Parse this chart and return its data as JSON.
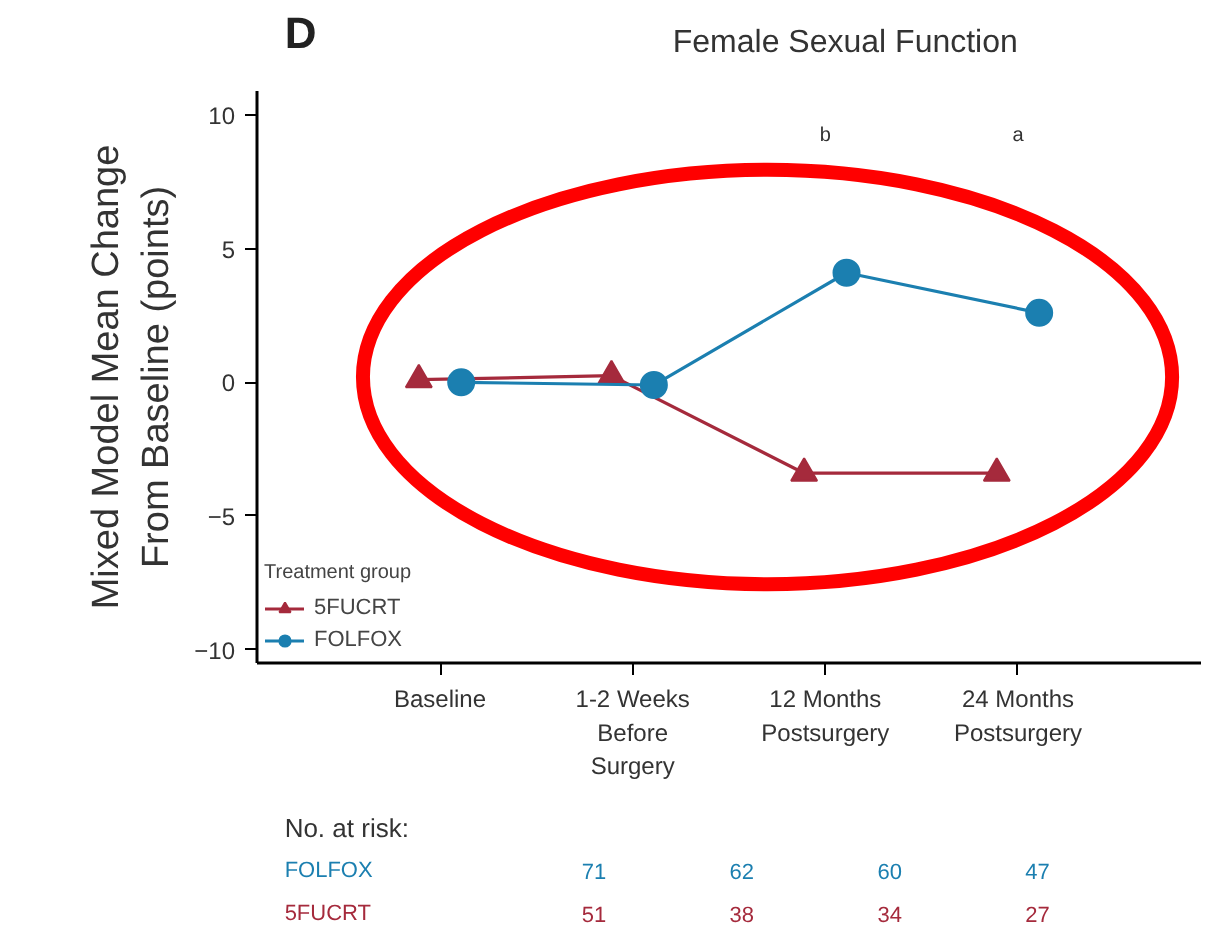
{
  "chart_data": {
    "type": "line",
    "title": "Female Sexual Function",
    "ylabel": "Mixed Model Mean Change\nFrom Baseline (points)",
    "categories": [
      "Baseline",
      "1-2 Weeks Before Surgery",
      "12 Months Postsurgery",
      "24 Months Postsurgery"
    ],
    "series": [
      {
        "name": "5FUCRT",
        "color": "#a52a3c",
        "marker": "triangle",
        "values": [
          0.1,
          0.25,
          -3.4,
          -3.4
        ]
      },
      {
        "name": "FOLFOX",
        "color": "#1b7fb0",
        "marker": "circle",
        "values": [
          0,
          -0.1,
          4.1,
          2.6
        ]
      }
    ],
    "ylim": [
      -10.5,
      10.9
    ],
    "yticks": [
      -10,
      -5,
      0,
      5,
      10
    ],
    "grid": false,
    "legend": "bottom left",
    "legend_title": "Treatment group",
    "line_style": "solid",
    "annotations": [
      "D",
      "No. at risk:",
      "b",
      "a",
      "FOLFOX",
      "71",
      "62",
      "60",
      "47",
      "5FUCRT",
      "51",
      "38",
      "34",
      "27"
    ]
  }
}
